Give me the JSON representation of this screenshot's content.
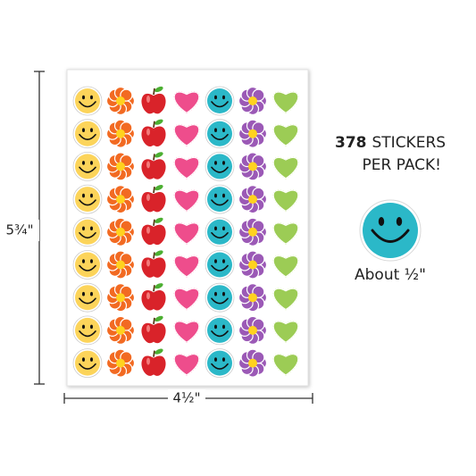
{
  "dimensions": {
    "height": "5¾\"",
    "width": "4½\""
  },
  "callout": {
    "count": "378",
    "line1": "STICKERS",
    "line2": "PER PACK!"
  },
  "sample": {
    "label": "About ½\""
  }
}
